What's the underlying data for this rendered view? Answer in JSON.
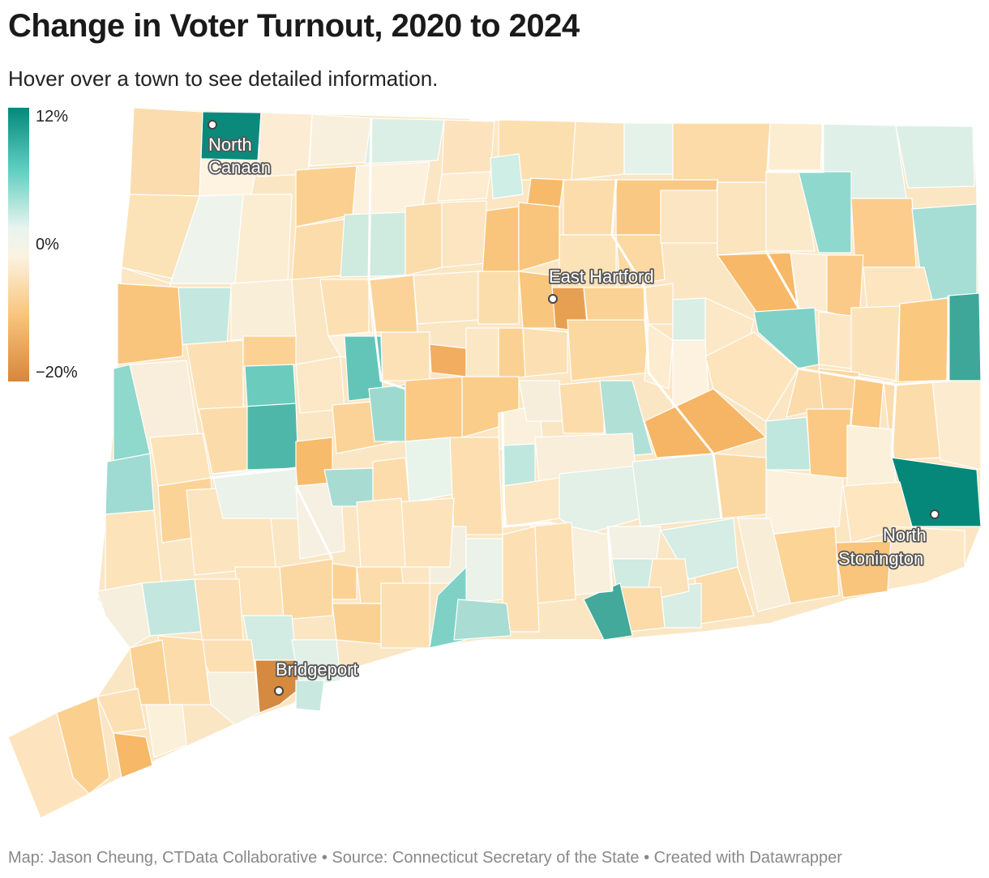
{
  "header": {
    "title": "Change in Voter Turnout, 2020 to 2024",
    "subtitle": "Hover over a town to see detailed information."
  },
  "legend": {
    "max_label": "12%",
    "mid_label": "0%",
    "min_label": "−20%",
    "colors": {
      "high": "#03897a",
      "mid_high": "#5ccdc0",
      "neutral": "#fbf3e2",
      "mid_low": "#f8c47b",
      "low": "#d7873c"
    }
  },
  "map": {
    "state": "Connecticut",
    "metric": "Change in voter turnout, 2020 to 2024 (%)",
    "labeled_towns": [
      {
        "name_line1": "North",
        "name_line2": "Canaan",
        "change_bin": "high"
      },
      {
        "name_line1": "East Hartford",
        "name_line2": "",
        "change_bin": "low"
      },
      {
        "name_line1": "Bridgeport",
        "name_line2": "",
        "change_bin": "low"
      },
      {
        "name_line1": "North",
        "name_line2": "Stonington",
        "change_bin": "high"
      }
    ]
  },
  "footer": {
    "credit": "Map: Jason Cheung, CTData Collaborative • Source: Connecticut Secretary of the State • Created with Datawrapper"
  }
}
